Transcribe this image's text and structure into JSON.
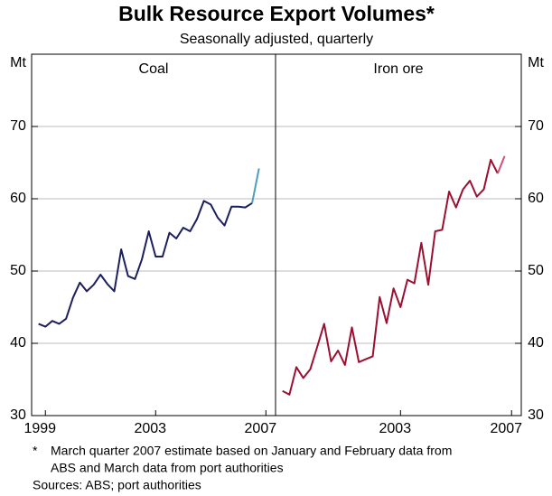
{
  "title": "Bulk Resource Export Volumes*",
  "subtitle": "Seasonally adjusted, quarterly",
  "footnote_marker": "*",
  "footnote": [
    "March quarter 2007 estimate based on January and February data from",
    "ABS and March data from port authorities"
  ],
  "sources": "Sources: ABS; port authorities",
  "chart_data": [
    {
      "type": "line",
      "title": "Coal",
      "ylabel": "Mt",
      "ytick_side": "left",
      "grid": true,
      "xlim": [
        1998.5,
        2007.35
      ],
      "xticks": [
        1999,
        2003,
        2007
      ],
      "ylim": [
        30,
        80
      ],
      "yticks": [
        30,
        40,
        50,
        60,
        70
      ],
      "x": [
        1998.75,
        1999,
        1999.25,
        1999.5,
        1999.75,
        2000,
        2000.25,
        2000.5,
        2000.75,
        2001,
        2001.25,
        2001.5,
        2001.75,
        2002,
        2002.25,
        2002.5,
        2002.75,
        2003,
        2003.25,
        2003.5,
        2003.75,
        2004,
        2004.25,
        2004.5,
        2004.75,
        2005,
        2005.25,
        2005.5,
        2005.75,
        2006,
        2006.25,
        2006.5,
        2006.75
      ],
      "series": [
        {
          "color": "#1b1f5e",
          "values": [
            42.7,
            42.3,
            43.1,
            42.7,
            43.4,
            46.3,
            48.4,
            47.2,
            48.1,
            49.5,
            48.2,
            47.2,
            53.0,
            49.3,
            48.9,
            51.6,
            55.5,
            52.0,
            52.0,
            55.3,
            54.5,
            56.0,
            55.5,
            57.2,
            59.7,
            59.2,
            57.4,
            56.3,
            58.9,
            58.9,
            58.8,
            59.4,
            null
          ]
        },
        {
          "color": "#4aa0b8",
          "values": [
            null,
            null,
            null,
            null,
            null,
            null,
            null,
            null,
            null,
            null,
            null,
            null,
            null,
            null,
            null,
            null,
            null,
            null,
            null,
            null,
            null,
            null,
            null,
            null,
            null,
            null,
            null,
            null,
            null,
            null,
            null,
            59.4,
            64.2
          ]
        }
      ]
    },
    {
      "type": "line",
      "title": "Iron ore",
      "ylabel": "Mt",
      "ytick_side": "right",
      "grid": true,
      "xlim": [
        1998.5,
        2007.35
      ],
      "xticks": [
        2003,
        2007
      ],
      "ylim": [
        30,
        80
      ],
      "yticks": [
        30,
        40,
        50,
        60,
        70
      ],
      "x": [
        1998.75,
        1999,
        1999.25,
        1999.5,
        1999.75,
        2000,
        2000.25,
        2000.5,
        2000.75,
        2001,
        2001.25,
        2001.5,
        2001.75,
        2002,
        2002.25,
        2002.5,
        2002.75,
        2003,
        2003.25,
        2003.5,
        2003.75,
        2004,
        2004.25,
        2004.5,
        2004.75,
        2005,
        2005.25,
        2005.5,
        2005.75,
        2006,
        2006.25,
        2006.5,
        2006.75
      ],
      "series": [
        {
          "color": "#9b1030",
          "values": [
            33.4,
            32.9,
            36.7,
            35.2,
            36.4,
            39.5,
            42.7,
            37.5,
            39.0,
            37.0,
            42.2,
            37.4,
            37.8,
            38.2,
            46.4,
            42.8,
            47.6,
            45.0,
            48.8,
            48.3,
            53.9,
            48.1,
            55.5,
            55.7,
            61.0,
            58.8,
            61.3,
            62.5,
            60.3,
            61.3,
            65.4,
            63.5,
            null
          ]
        },
        {
          "color": "#d0507a",
          "values": [
            null,
            null,
            null,
            null,
            null,
            null,
            null,
            null,
            null,
            null,
            null,
            null,
            null,
            null,
            null,
            null,
            null,
            null,
            null,
            null,
            null,
            null,
            null,
            null,
            null,
            null,
            null,
            null,
            null,
            null,
            null,
            63.5,
            65.9
          ]
        }
      ]
    }
  ]
}
